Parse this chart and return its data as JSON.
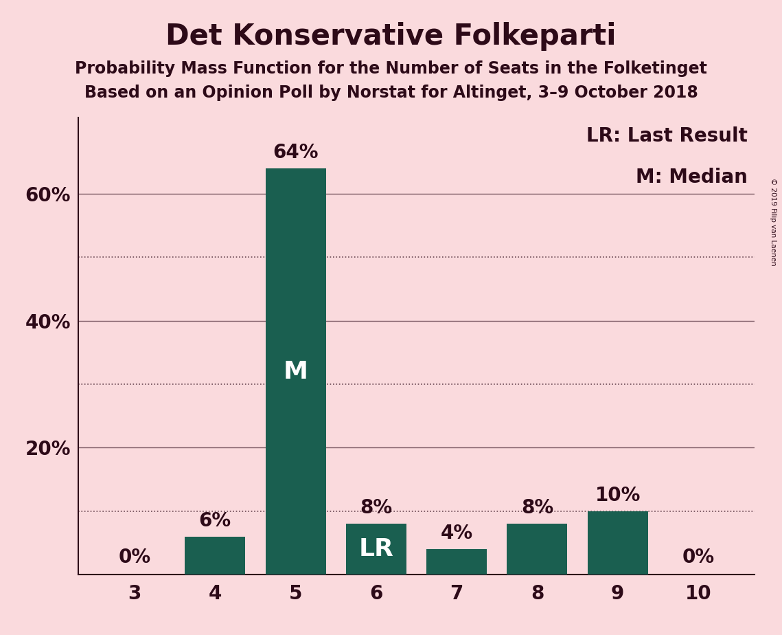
{
  "title": "Det Konservative Folkeparti",
  "subtitle1": "Probability Mass Function for the Number of Seats in the Folketinget",
  "subtitle2": "Based on an Opinion Poll by Norstat for Altinget, 3–9 October 2018",
  "copyright": "© 2019 Filip van Laenen",
  "seats": [
    3,
    4,
    5,
    6,
    7,
    8,
    9,
    10
  ],
  "probabilities": [
    0,
    6,
    64,
    8,
    4,
    8,
    10,
    0
  ],
  "bar_color": "#1a5f50",
  "background_color": "#fadadd",
  "text_color": "#2d0a18",
  "median_seat": 5,
  "last_result_seat": 6,
  "legend_text1": "LR: Last Result",
  "legend_text2": "M: Median",
  "solid_gridlines": [
    20,
    40,
    60
  ],
  "dotted_gridlines": [
    10,
    30,
    50
  ],
  "ylim": [
    0,
    72
  ],
  "title_fontsize": 30,
  "subtitle_fontsize": 17,
  "bar_label_fontsize": 20,
  "axis_label_fontsize": 20,
  "legend_fontsize": 20,
  "bar_inner_fontsize": 26
}
